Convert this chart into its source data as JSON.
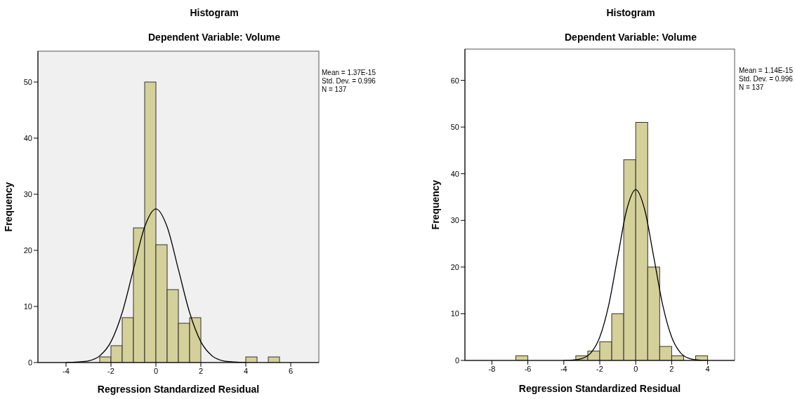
{
  "chart_data": [
    {
      "type": "histogram",
      "title": "Histogram",
      "subtitle": "Dependent Variable: Volume",
      "xlabel": "Regression Standardized Residual",
      "ylabel": "Frequency",
      "annotations": [
        "Mean = 1.37E-15",
        "Std. Dev. = 0.996",
        "N = 137"
      ],
      "bins": [
        -2.5,
        -2,
        -1.5,
        -1,
        -0.5,
        0,
        0.5,
        1,
        1.5,
        2,
        2.5,
        3,
        3.5,
        4,
        4.5,
        5,
        5.5
      ],
      "values": [
        1,
        3,
        8,
        24,
        50,
        21,
        13,
        7,
        8,
        0,
        0,
        0,
        0,
        1,
        0,
        1
      ],
      "color": "#d4d09a",
      "series": [
        {
          "type": "line",
          "color": "#000000",
          "x": [
            -4,
            -3.5,
            -3,
            -2.5,
            -2,
            -1.5,
            -1,
            -0.5,
            0,
            0.5,
            1,
            1.5,
            2,
            2.5,
            3,
            3.5,
            4
          ],
          "values": [
            0,
            0.1,
            0.3,
            1.2,
            3.7,
            8.9,
            16.6,
            24.2,
            27.4,
            24.2,
            16.6,
            8.9,
            3.7,
            1.2,
            0.3,
            0.1,
            0
          ]
        }
      ],
      "xlim": [
        -5.25,
        7.25
      ],
      "xticks": [
        -4,
        -2,
        0,
        2,
        4,
        6
      ],
      "ylim": [
        0,
        55.5
      ],
      "yticks": [
        0,
        10,
        20,
        30,
        40,
        50
      ]
    },
    {
      "type": "histogram",
      "title": "Histogram",
      "subtitle": "Dependent Variable: Volume",
      "xlabel": "Regression Standardized Residual",
      "ylabel": "Frequency",
      "annotations": [
        "Mean = 1.14E-15",
        "Std. Dev. = 0.996",
        "N = 137"
      ],
      "bins": [
        -6.667,
        -6,
        -5.333,
        -4.667,
        -4,
        -3.333,
        -2.667,
        -2,
        -1.333,
        -0.667,
        0,
        0.667,
        1.333,
        2,
        2.667,
        3.333,
        4
      ],
      "values": [
        1,
        0,
        0,
        0,
        0,
        1,
        2,
        4,
        10,
        43,
        51,
        20,
        3,
        1,
        0,
        1
      ],
      "color": "#d4d09a",
      "series": [
        {
          "type": "line",
          "color": "#000000",
          "x": [
            -4,
            -3.5,
            -3,
            -2.5,
            -2,
            -1.5,
            -1,
            -0.5,
            0,
            0.5,
            1,
            1.5,
            2,
            2.5,
            3,
            3.5,
            4
          ],
          "values": [
            0,
            0.1,
            0.4,
            1.6,
            5,
            11.9,
            22.2,
            32.3,
            36.6,
            32.3,
            22.2,
            11.9,
            5,
            1.6,
            0.4,
            0.1,
            0
          ]
        }
      ],
      "xlim": [
        -9.5,
        5.5
      ],
      "xticks": [
        -8,
        -6,
        -4,
        -2,
        0,
        2,
        4
      ],
      "ylim": [
        0,
        66.7
      ],
      "yticks": [
        0,
        10,
        20,
        30,
        40,
        50,
        60
      ]
    }
  ]
}
